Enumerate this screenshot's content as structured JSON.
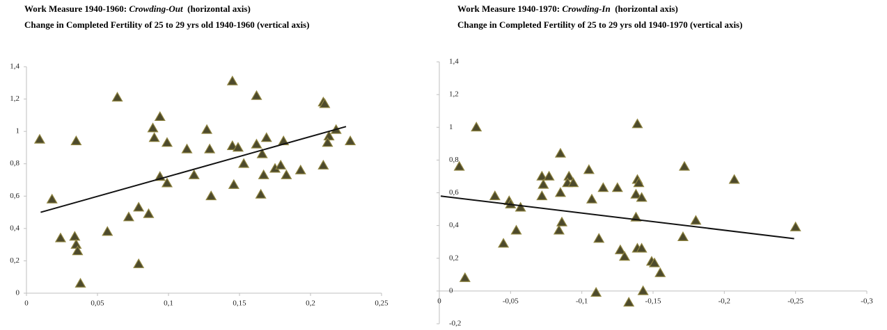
{
  "chart_data": [
    {
      "type": "scatter",
      "title": [
        "Work Measure 1940-1960: ",
        "Crowding-Out",
        "  (horizontal axis)"
      ],
      "subtitle": "Change in Completed Fertility of 25 to 29 yrs old 1940-1960 (vertical axis)",
      "marker_color": "#4d4a2c",
      "x": [
        0.0093,
        0.018,
        0.024,
        0.034,
        0.035,
        0.036,
        0.035,
        0.038,
        0.057,
        0.064,
        0.072,
        0.079,
        0.079,
        0.086,
        0.089,
        0.09,
        0.094,
        0.094,
        0.099,
        0.099,
        0.113,
        0.118,
        0.127,
        0.129,
        0.13,
        0.145,
        0.145,
        0.149,
        0.146,
        0.153,
        0.162,
        0.162,
        0.166,
        0.165,
        0.167,
        0.169,
        0.175,
        0.179,
        0.181,
        0.183,
        0.193,
        0.209,
        0.21,
        0.209,
        0.213,
        0.212,
        0.218,
        0.228
      ],
      "y": [
        0.95,
        0.58,
        0.34,
        0.35,
        0.3,
        0.26,
        0.94,
        0.06,
        0.38,
        1.21,
        0.47,
        0.53,
        0.18,
        0.49,
        1.02,
        0.96,
        1.09,
        0.72,
        0.93,
        0.68,
        0.89,
        0.73,
        1.01,
        0.89,
        0.6,
        1.31,
        0.91,
        0.9,
        0.67,
        0.8,
        1.22,
        0.92,
        0.86,
        0.61,
        0.73,
        0.96,
        0.77,
        0.79,
        0.94,
        0.73,
        0.76,
        1.18,
        1.17,
        0.79,
        0.97,
        0.93,
        1.01,
        0.94
      ],
      "trendline": {
        "x": [
          0.01,
          0.225
        ],
        "y": [
          0.5,
          1.03
        ]
      },
      "xlim": [
        0,
        0.25
      ],
      "xticks": [
        0,
        {
          "value": 0.05,
          "label": "0,05"
        },
        {
          "value": 0.1,
          "label": "0,1"
        },
        {
          "value": 0.15,
          "label": "0,15"
        },
        {
          "value": 0.2,
          "label": "0,2"
        },
        {
          "value": 0.25,
          "label": "0,25"
        }
      ],
      "ylim": [
        0,
        1.4
      ],
      "yticks": [
        0,
        {
          "value": 0.2,
          "label": "0,2"
        },
        {
          "value": 0.4,
          "label": "0,4"
        },
        {
          "value": 0.6,
          "label": "0,6"
        },
        {
          "value": 0.8,
          "label": "0,8"
        },
        1,
        {
          "value": 1.2,
          "label": "1,2"
        },
        {
          "value": 1.4,
          "label": "1,4"
        }
      ]
    },
    {
      "type": "scatter",
      "title": [
        "Work Measure 1940-1970: ",
        "Crowding-In",
        "  (horizontal axis)"
      ],
      "subtitle": "Change in Completed Fertility of 25 to 29 yrs old  1940-1970 (vertical axis)",
      "marker_color": "#4d4a2c",
      "x": [
        -0.014,
        -0.018,
        -0.026,
        -0.039,
        -0.045,
        -0.049,
        -0.05,
        -0.054,
        -0.057,
        -0.072,
        -0.073,
        -0.072,
        -0.077,
        -0.084,
        -0.085,
        -0.085,
        -0.086,
        -0.091,
        -0.09,
        -0.094,
        -0.105,
        -0.107,
        -0.11,
        -0.112,
        -0.115,
        -0.125,
        -0.127,
        -0.13,
        -0.133,
        -0.138,
        -0.138,
        -0.139,
        -0.14,
        -0.139,
        -0.142,
        -0.139,
        -0.142,
        -0.143,
        -0.149,
        -0.151,
        -0.155,
        -0.172,
        -0.171,
        -0.18,
        -0.207,
        -0.25
      ],
      "y": [
        0.76,
        0.08,
        1.0,
        0.58,
        0.29,
        0.55,
        0.53,
        0.37,
        0.51,
        0.7,
        0.65,
        0.58,
        0.7,
        0.37,
        0.84,
        0.6,
        0.42,
        0.7,
        0.66,
        0.66,
        0.74,
        0.56,
        -0.01,
        0.32,
        0.63,
        0.63,
        0.25,
        0.21,
        -0.07,
        0.45,
        0.59,
        0.68,
        0.66,
        1.02,
        0.57,
        0.26,
        0.26,
        0.0,
        0.18,
        0.17,
        0.11,
        0.76,
        0.33,
        0.43,
        0.68,
        0.39
      ],
      "trendline": {
        "x": [
          -0.001,
          -0.249
        ],
        "y": [
          0.58,
          0.32
        ]
      },
      "xlim": [
        0,
        -0.3
      ],
      "xticks": [
        0,
        {
          "value": -0.05,
          "label": "-0,05"
        },
        {
          "value": -0.1,
          "label": "-0,1"
        },
        {
          "value": -0.15,
          "label": "-0,15"
        },
        {
          "value": -0.2,
          "label": "-0,2"
        },
        {
          "value": -0.25,
          "label": "-0,25"
        },
        {
          "value": -0.3,
          "label": "-0,3"
        }
      ],
      "ylim": [
        -0.2,
        1.4
      ],
      "yticks": [
        {
          "value": -0.2,
          "label": "-0,2"
        },
        0,
        {
          "value": 0.2,
          "label": "0,2"
        },
        {
          "value": 0.4,
          "label": "0,4"
        },
        {
          "value": 0.6,
          "label": "0,6"
        },
        {
          "value": 0.8,
          "label": "0,8"
        },
        1,
        {
          "value": 1.2,
          "label": "1,2"
        },
        {
          "value": 1.4,
          "label": "1,4"
        }
      ]
    }
  ]
}
